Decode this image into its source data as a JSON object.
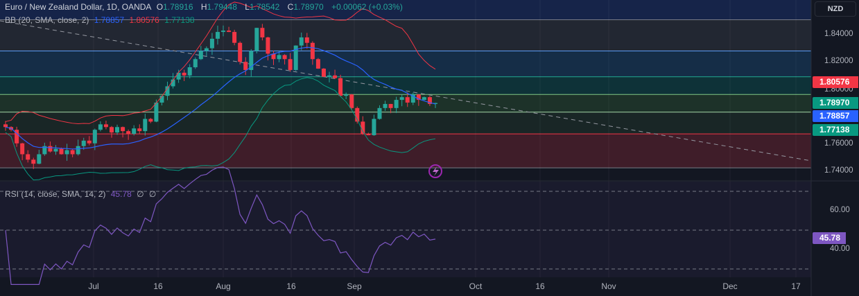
{
  "header": {
    "symbol": "Euro / New Zealand Dollar, 1D, OANDA",
    "o_label": "O",
    "o": "1.78916",
    "h_label": "H",
    "h": "1.79448",
    "l_label": "L",
    "l": "1.78542",
    "c_label": "C",
    "c": "1.78970",
    "change": "+0.00062 (+0.03%)"
  },
  "bb_legend": {
    "label": "BB (20, SMA, close, 2)",
    "basis": "1.78857",
    "upper": "1.80576",
    "lower": "1.77138"
  },
  "rsi_legend": {
    "label": "RSI (14, close, SMA, 14, 2)",
    "value": "45.78",
    "v2": "∅",
    "v3": "∅"
  },
  "currency": "NZD",
  "badges": {
    "upper": "1.80576",
    "close": "1.78970",
    "basis": "1.78857",
    "lower": "1.77138",
    "rsi": "45.78"
  },
  "colors": {
    "up": "#26a69a",
    "down": "#f23645",
    "basis": "#2962ff",
    "upper": "#f23645",
    "lower": "#089981",
    "rsi": "#7e57c2"
  },
  "chart_data": {
    "type": "candlestick",
    "price_ticks": [
      "1.84000",
      "1.82000",
      "1.80000",
      "1.76000",
      "1.74000"
    ],
    "price_tick_values": [
      1.84,
      1.82,
      1.8,
      1.76,
      1.74
    ],
    "rsi_ticks": [
      "60.00",
      "40.00"
    ],
    "rsi_tick_values": [
      60,
      40
    ],
    "x_ticks": [
      "Jul",
      "16",
      "Aug",
      "16",
      "Sep",
      "Oct",
      "16",
      "Nov",
      "Dec",
      "17"
    ],
    "levels": [
      1.851,
      1.828,
      1.809,
      1.796,
      1.783,
      1.767,
      1.742
    ],
    "closes": [
      1.772,
      1.77,
      1.76,
      1.752,
      1.748,
      1.745,
      1.752,
      1.758,
      1.754,
      1.756,
      1.752,
      1.755,
      1.752,
      1.758,
      1.762,
      1.76,
      1.77,
      1.774,
      1.772,
      1.768,
      1.772,
      1.769,
      1.767,
      1.771,
      1.769,
      1.778,
      1.776,
      1.79,
      1.795,
      1.802,
      1.807,
      1.812,
      1.81,
      1.816,
      1.822,
      1.828,
      1.83,
      1.837,
      1.842,
      1.843,
      1.842,
      1.834,
      1.82,
      1.814,
      1.828,
      1.845,
      1.838,
      1.826,
      1.822,
      1.825,
      1.822,
      1.814,
      1.832,
      1.838,
      1.834,
      1.822,
      1.815,
      1.809,
      1.81,
      1.808,
      1.795,
      1.796,
      1.786,
      1.776,
      1.767,
      1.766,
      1.778,
      1.786,
      1.789,
      1.786,
      1.792,
      1.794,
      1.79,
      1.796,
      1.792,
      1.794,
      1.789,
      1.7897
    ]
  }
}
